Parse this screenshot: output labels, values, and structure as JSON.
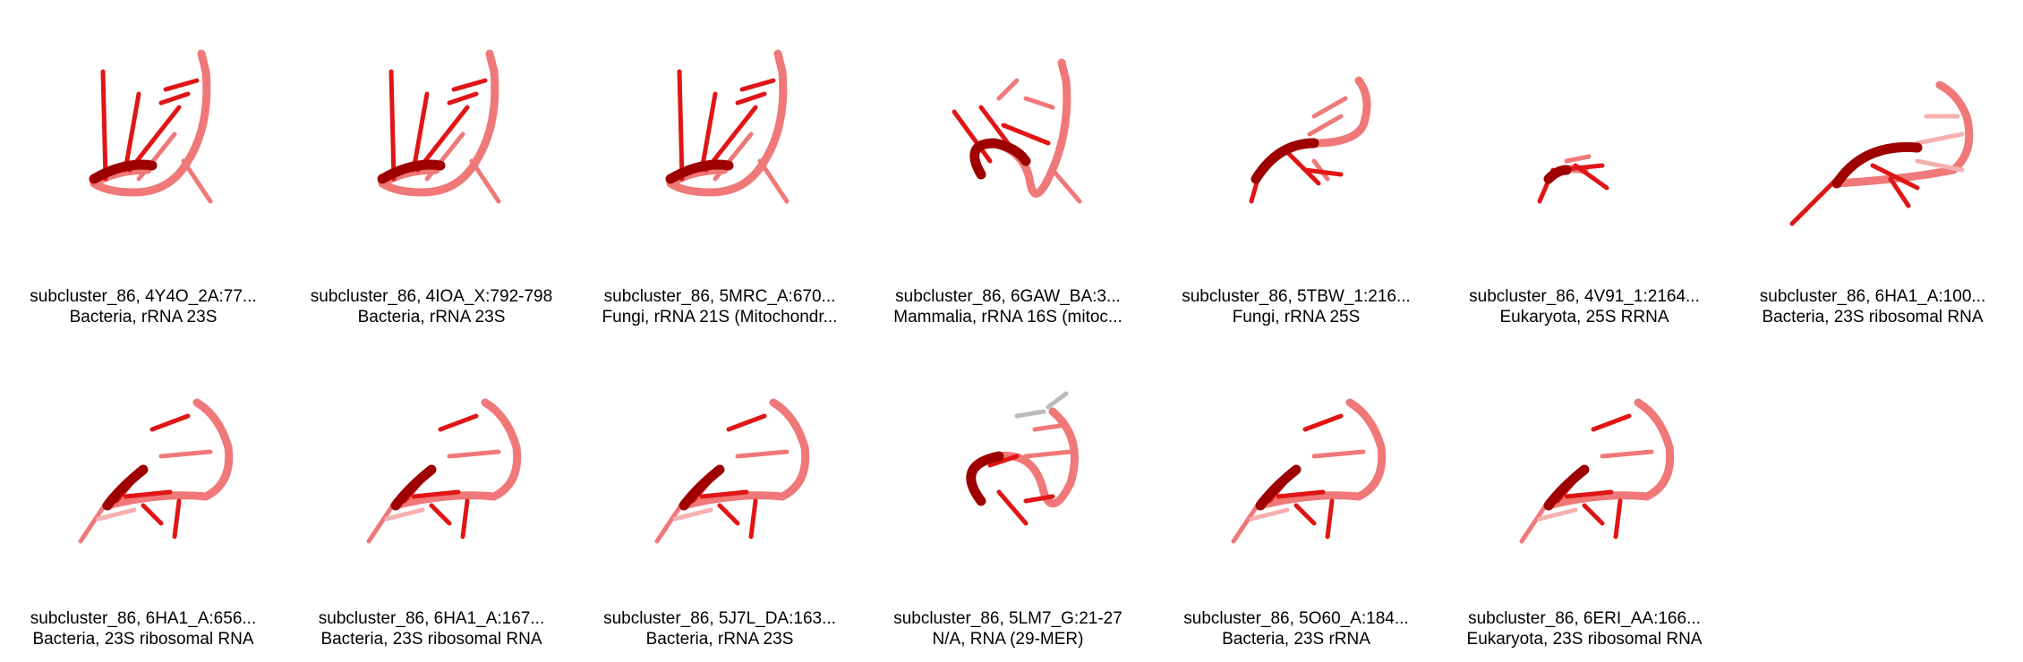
{
  "structures": [
    {
      "id": "subcluster_86, 4Y4O_2A:77...",
      "organism": "Bacteria, rRNA 23S",
      "variant": "a"
    },
    {
      "id": "subcluster_86, 4IOA_X:792-798",
      "organism": "Bacteria, rRNA 23S",
      "variant": "a"
    },
    {
      "id": "subcluster_86, 5MRC_A:670...",
      "organism": "Fungi, rRNA 21S (Mitochondr...",
      "variant": "a"
    },
    {
      "id": "subcluster_86, 6GAW_BA:3...",
      "organism": "Mammalia, rRNA 16S (mitoc...",
      "variant": "b"
    },
    {
      "id": "subcluster_86, 5TBW_1:216...",
      "organism": "Fungi, rRNA 25S",
      "variant": "c"
    },
    {
      "id": "subcluster_86, 4V91_1:2164...",
      "organism": "Eukaryota, 25S RRNA",
      "variant": "d"
    },
    {
      "id": "subcluster_86, 6HA1_A:100...",
      "organism": "Bacteria, 23S ribosomal RNA",
      "variant": "e"
    },
    {
      "id": "subcluster_86, 6HA1_A:656...",
      "organism": "Bacteria, 23S ribosomal RNA",
      "variant": "f"
    },
    {
      "id": "subcluster_86, 6HA1_A:167...",
      "organism": "Bacteria, 23S ribosomal RNA",
      "variant": "f"
    },
    {
      "id": "subcluster_86, 5J7L_DA:163...",
      "organism": "Bacteria, rRNA 23S",
      "variant": "f"
    },
    {
      "id": "subcluster_86, 5LM7_G:21-27",
      "organism": "N/A, RNA (29-MER)",
      "variant": "g"
    },
    {
      "id": "subcluster_86, 5O60_A:184...",
      "organism": "Bacteria, 23S rRNA",
      "variant": "f"
    },
    {
      "id": "subcluster_86, 6ERI_AA:166...",
      "organism": "Eukaryota, 23S ribosomal RNA",
      "variant": "f"
    }
  ],
  "colors": {
    "dark": "#9e0000",
    "mid": "#e01515",
    "light": "#f07878",
    "pale": "#f5b0b0",
    "grey": "#bbbbbb"
  }
}
